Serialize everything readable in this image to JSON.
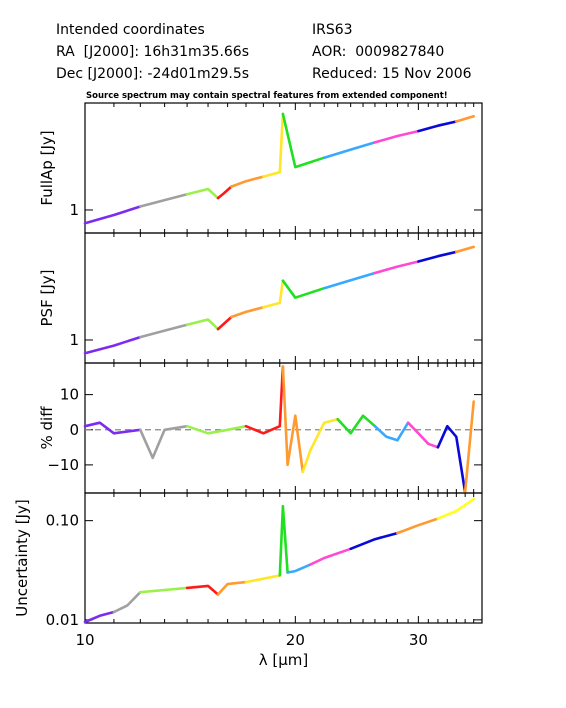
{
  "header": {
    "intended": "Intended coordinates",
    "ra": "RA  [J2000]: 16h31m35.66s",
    "dec": "Dec [J2000]: -24d01m29.5s",
    "target": "IRS63",
    "aor": "AOR:  0009827840",
    "reduced": "Reduced: 15 Nov 2006",
    "note": "Source spectrum may contain spectral features from extended component!"
  },
  "colors": [
    "#7b2cf0",
    "#a0a0a0",
    "#9af04c",
    "#ff1a1a",
    "#ff9a30",
    "#ffe628",
    "#21e021",
    "#39a8ff",
    "#ff4ad2",
    "#0a0ad8",
    "#ff9a30",
    "#ffff20"
  ],
  "chart_data": [
    {
      "type": "line",
      "panel": "FullAp",
      "ylabel": "FullAp [Jy]",
      "y_scale": "log",
      "x_scale": "log",
      "xlim": [
        10,
        37
      ],
      "ylim": [
        0.68,
        6.0
      ],
      "yticks": [
        {
          "value": 1,
          "label": "1"
        }
      ],
      "series": [
        {
          "x": [
            10,
            11,
            12,
            13,
            14,
            15,
            15.5,
            15.8,
            16.2,
            17,
            18,
            19,
            19.2,
            20,
            22,
            24,
            26,
            28,
            30,
            32,
            34,
            36
          ],
          "y": [
            0.8,
            0.92,
            1.06,
            1.18,
            1.3,
            1.42,
            1.22,
            1.32,
            1.48,
            1.62,
            1.75,
            1.88,
            5.0,
            2.05,
            2.4,
            2.75,
            3.1,
            3.45,
            3.75,
            4.1,
            4.4,
            4.8
          ]
        }
      ]
    },
    {
      "type": "line",
      "panel": "PSF",
      "ylabel": "PSF [Jy]",
      "y_scale": "log",
      "x_scale": "log",
      "xlim": [
        10,
        37
      ],
      "ylim": [
        0.68,
        6.0
      ],
      "yticks": [
        {
          "value": 1,
          "label": "1"
        }
      ],
      "series": [
        {
          "x": [
            10,
            11,
            12,
            13,
            14,
            15,
            15.5,
            15.8,
            16.2,
            17,
            18,
            19,
            19.2,
            20,
            22,
            24,
            26,
            28,
            30,
            32,
            34,
            36
          ],
          "y": [
            0.8,
            0.91,
            1.05,
            1.17,
            1.29,
            1.41,
            1.2,
            1.31,
            1.47,
            1.6,
            1.73,
            1.86,
            2.7,
            2.03,
            2.38,
            2.72,
            3.07,
            3.42,
            3.72,
            4.07,
            4.37,
            4.75
          ]
        }
      ]
    },
    {
      "type": "line",
      "panel": "diff",
      "ylabel": "% diff",
      "y_scale": "linear",
      "x_scale": "log",
      "xlim": [
        10,
        37
      ],
      "ylim": [
        -18,
        19
      ],
      "reference_line": 0,
      "yticks": [
        {
          "value": 10,
          "label": "10"
        },
        {
          "value": 0,
          "label": "0"
        },
        {
          "value": -10,
          "label": "−10"
        }
      ],
      "series": [
        {
          "x": [
            10,
            10.5,
            11,
            12,
            12.5,
            13,
            14,
            15,
            16,
            17,
            18,
            19,
            19.2,
            19.5,
            20,
            20.5,
            21,
            22,
            23,
            24,
            25,
            26,
            27,
            28,
            29,
            30,
            31,
            32,
            33,
            34,
            35,
            36
          ],
          "y": [
            1,
            2,
            -1,
            0,
            -8,
            0,
            1,
            -1,
            0,
            1,
            -1,
            1,
            18,
            -10,
            4,
            -12,
            -6,
            2,
            3,
            -1,
            4,
            1,
            -2,
            -3,
            2,
            -1,
            -4,
            -5,
            1,
            -2,
            -18,
            8
          ]
        }
      ]
    },
    {
      "type": "line",
      "panel": "Uncertainty",
      "ylabel": "Uncertainty [Jy]",
      "y_scale": "log",
      "x_scale": "log",
      "xlim": [
        10,
        37
      ],
      "ylim": [
        0.0093,
        0.19
      ],
      "xlabel": "λ [μm]",
      "xticks": [
        {
          "value": 10,
          "label": "10"
        },
        {
          "value": 20,
          "label": "20"
        },
        {
          "value": 30,
          "label": "30"
        }
      ],
      "yticks": [
        {
          "value": 0.01,
          "label": "0.01"
        },
        {
          "value": 0.1,
          "label": "0.10"
        }
      ],
      "series": [
        {
          "x": [
            10,
            10.5,
            11,
            11.5,
            12,
            13,
            14,
            15,
            15.5,
            16,
            17,
            18,
            19,
            19.2,
            19.5,
            20,
            21,
            22,
            24,
            26,
            28,
            30,
            32,
            34,
            36
          ],
          "y": [
            0.0095,
            0.011,
            0.012,
            0.014,
            0.019,
            0.02,
            0.021,
            0.022,
            0.018,
            0.023,
            0.024,
            0.026,
            0.028,
            0.14,
            0.03,
            0.031,
            0.036,
            0.042,
            0.052,
            0.065,
            0.075,
            0.09,
            0.105,
            0.125,
            0.165
          ]
        }
      ]
    }
  ]
}
